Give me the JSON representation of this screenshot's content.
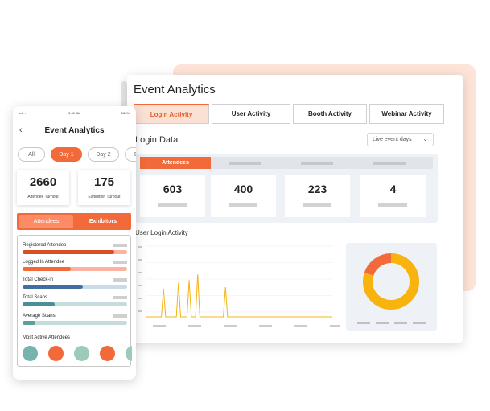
{
  "desktop": {
    "title": "Event Analytics",
    "tabs": [
      {
        "label": "Login Activity",
        "active": true
      },
      {
        "label": "User Activity",
        "active": false
      },
      {
        "label": "Booth Activity",
        "active": false
      },
      {
        "label": "Webinar Activity",
        "active": false
      }
    ],
    "section_title": "Login Data",
    "dropdown": {
      "selected": "Live event days",
      "icon": "chevron-down-icon"
    },
    "stats": {
      "active_tab": "Attendees",
      "values": [
        "603",
        "400",
        "223",
        "4"
      ]
    },
    "chart_title": "User Login Activity",
    "donut": {
      "icon": "donut-chart"
    }
  },
  "chart_data": [
    {
      "type": "line",
      "title": "User Login Activity",
      "xlabel": "",
      "ylabel": "",
      "ylim": [
        0,
        100
      ],
      "series": [
        {
          "values": [
            0,
            0,
            0,
            0,
            0,
            0,
            0,
            0,
            40,
            0,
            0,
            0,
            0,
            0,
            0,
            48,
            0,
            0,
            0,
            0,
            52,
            0,
            0,
            0,
            60,
            0,
            0,
            0,
            0,
            0,
            0,
            0,
            0,
            0,
            0,
            0,
            0,
            42,
            0,
            0,
            0,
            0,
            0,
            0,
            0,
            0,
            0,
            0,
            0,
            0,
            0,
            0,
            0,
            0,
            0,
            0,
            0,
            0,
            0,
            0,
            0,
            0,
            0,
            0,
            0,
            0,
            0,
            0,
            0,
            0,
            0,
            0,
            0,
            0,
            0,
            0,
            0,
            0,
            0,
            0,
            0,
            0,
            0,
            0,
            0,
            0,
            0,
            0
          ]
        }
      ],
      "color": "#f5b312"
    },
    {
      "type": "pie",
      "values": [
        80,
        20
      ],
      "colors": [
        "#f9b30f",
        "#f26a3a"
      ]
    }
  ],
  "phone": {
    "status": {
      "left": "••ll ᯤ",
      "time": "9:41 AM",
      "battery": "100%"
    },
    "back_icon": "chevron-left-icon",
    "title": "Event Analytics",
    "chips": [
      {
        "label": "All",
        "active": false
      },
      {
        "label": "Day 1",
        "active": true
      },
      {
        "label": "Day 2",
        "active": false
      },
      {
        "label": "Da",
        "active": false
      }
    ],
    "cards": [
      {
        "value": "2660",
        "label": "Attendee Turnout"
      },
      {
        "value": "175",
        "label": "Exhibition Turnout"
      }
    ],
    "toggle": {
      "attendees": "Attendees",
      "exhibitors": "Exhibitors"
    },
    "metrics": [
      {
        "label": "Registered Attendee",
        "progress": 0.88,
        "fill": "#d94e22",
        "track": "#f9b3a0"
      },
      {
        "label": "Logged In Attendee",
        "progress": 0.46,
        "fill": "#f26a3a",
        "track": "#f9b3a0"
      },
      {
        "label": "Total Check-in",
        "progress": 0.58,
        "fill": "#3f6fa1",
        "track": "#c9dbe8"
      },
      {
        "label": "Total Scans",
        "progress": 0.31,
        "fill": "#4a8f95",
        "track": "#c4dcdb"
      },
      {
        "label": "Average Scans",
        "progress": 0.12,
        "fill": "#5d9ea0",
        "track": "#c4dcdb"
      }
    ],
    "most_active_title": "Most Active Attendees",
    "avatar_colors": [
      "#77b4ad",
      "#f26a3a",
      "#9ccbb8",
      "#f26a3a",
      "#9ccbb8"
    ]
  }
}
